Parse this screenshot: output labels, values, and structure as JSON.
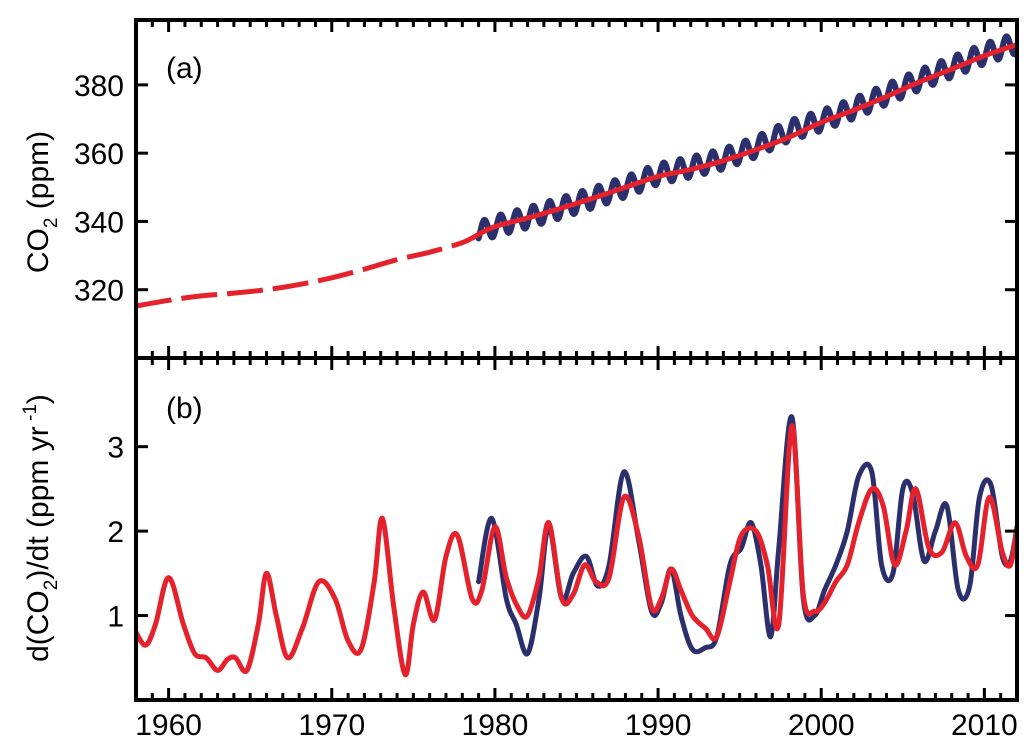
{
  "chart_data": [
    {
      "type": "line",
      "panel_label": "(a)",
      "ylabel": {
        "pre": "CO",
        "sub": "2",
        "post": " (ppm)"
      },
      "xlim": [
        1958,
        2012
      ],
      "ylim": [
        300,
        399
      ],
      "yticks": [
        320,
        340,
        360,
        380
      ],
      "grid": false,
      "series": [
        {
          "style": "seasonal",
          "color": "#2b2f6b",
          "x": [
            1979,
            1980,
            1982,
            1984,
            1986,
            1988,
            1990,
            1992,
            1994,
            1996,
            1998,
            2000,
            2002,
            2004,
            2006,
            2008,
            2010,
            2012
          ],
          "values": [
            336.8,
            338.6,
            341.1,
            343.9,
            346.9,
            350.1,
            353.9,
            355.9,
            358.3,
            361.8,
            366.5,
            369.5,
            373.1,
            377.2,
            381.4,
            385.2,
            389.1,
            392.2
          ],
          "amplitude": 3.0
        },
        {
          "style": "trend",
          "color": "#e5222b",
          "x": [
            1958,
            1960,
            1962,
            1964,
            1966,
            1968,
            1970,
            1972,
            1974,
            1976,
            1978,
            1979,
            1980,
            1982,
            1984,
            1986,
            1988,
            1990,
            1992,
            1994,
            1996,
            1998,
            2000,
            2002,
            2004,
            2006,
            2008,
            2010,
            2012
          ],
          "values": [
            315.2,
            316.9,
            318.2,
            319.0,
            320.0,
            321.5,
            323.5,
            326.0,
            328.8,
            331.0,
            333.8,
            336.2,
            338.5,
            341.0,
            343.8,
            346.8,
            350.0,
            353.2,
            355.2,
            357.8,
            361.0,
            364.6,
            369.0,
            372.6,
            376.6,
            380.8,
            384.6,
            388.5,
            391.8
          ],
          "dashed_before": 1979
        }
      ]
    },
    {
      "type": "line",
      "panel_label": "(b)",
      "ylabel": {
        "pre": "d(CO",
        "sub": "2",
        "mid": ")/dt (ppm yr",
        "sup": " -1",
        "post": ")"
      },
      "xlim": [
        1958,
        2012
      ],
      "ylim": [
        0,
        4.05
      ],
      "yticks": [
        1,
        2,
        3
      ],
      "xticks": [
        1960,
        1970,
        1980,
        1990,
        2000,
        2010
      ],
      "grid": false,
      "series": [
        {
          "color": "#2b2f6b",
          "x": [
            1979,
            1979.8,
            1980.7,
            1981.3,
            1982.0,
            1982.7,
            1983.3,
            1984.1,
            1984.8,
            1985.6,
            1986.3,
            1987.0,
            1987.9,
            1988.8,
            1989.6,
            1990.2,
            1990.8,
            1991.4,
            1992.1,
            1992.9,
            1993.6,
            1994.4,
            1995.1,
            1995.7,
            1996.3,
            1996.9,
            1997.4,
            1998.2,
            1998.9,
            1999.6,
            2000.2,
            2000.9,
            2001.6,
            2002.3,
            2003.1,
            2003.7,
            2004.4,
            2005.0,
            2005.6,
            2006.3,
            2007.0,
            2007.7,
            2008.4,
            2009.1,
            2009.7,
            2010.4,
            2011.1,
            2011.6,
            2012
          ],
          "values": [
            1.4,
            2.15,
            1.2,
            0.9,
            0.55,
            1.2,
            2.05,
            1.2,
            1.5,
            1.7,
            1.35,
            1.6,
            2.7,
            1.9,
            1.05,
            1.15,
            1.55,
            1.0,
            0.6,
            0.62,
            0.75,
            1.6,
            1.8,
            2.1,
            1.6,
            0.75,
            1.8,
            3.35,
            1.2,
            1.0,
            1.3,
            1.6,
            2.0,
            2.65,
            2.7,
            1.6,
            1.5,
            2.5,
            2.45,
            1.65,
            2.0,
            2.3,
            1.3,
            1.35,
            2.4,
            2.55,
            1.7,
            1.65,
            2.05
          ]
        },
        {
          "color": "#e5222b",
          "x": [
            1958,
            1958.6,
            1959.2,
            1960.0,
            1960.9,
            1961.6,
            1962.3,
            1963.0,
            1963.6,
            1964.1,
            1964.8,
            1965.5,
            1966.0,
            1966.6,
            1967.3,
            1968.2,
            1969.2,
            1970.2,
            1971.0,
            1971.8,
            1972.6,
            1973.1,
            1973.8,
            1974.5,
            1975.0,
            1975.6,
            1976.3,
            1977.0,
            1977.7,
            1978.6,
            1979.2,
            1980.0,
            1980.7,
            1981.4,
            1982.0,
            1982.7,
            1983.3,
            1984.1,
            1984.8,
            1985.5,
            1986.2,
            1987.0,
            1987.9,
            1988.8,
            1989.6,
            1990.2,
            1990.8,
            1991.4,
            1992.1,
            1992.9,
            1993.6,
            1994.4,
            1995.1,
            1996.0,
            1996.7,
            1997.4,
            1998.2,
            1998.9,
            1999.6,
            2000.2,
            2000.9,
            2001.6,
            2002.3,
            2003.1,
            2003.8,
            2004.5,
            2005.2,
            2005.8,
            2006.6,
            2007.4,
            2008.2,
            2008.9,
            2009.6,
            2010.3,
            2011.1,
            2011.6,
            2012
          ],
          "values": [
            0.8,
            0.65,
            0.9,
            1.45,
            0.9,
            0.55,
            0.5,
            0.35,
            0.48,
            0.5,
            0.35,
            0.9,
            1.5,
            1.0,
            0.5,
            0.85,
            1.4,
            1.2,
            0.7,
            0.6,
            1.4,
            2.15,
            1.1,
            0.3,
            0.9,
            1.28,
            0.95,
            1.7,
            1.95,
            1.2,
            1.3,
            2.05,
            1.45,
            1.1,
            1.0,
            1.45,
            2.1,
            1.2,
            1.25,
            1.6,
            1.4,
            1.45,
            2.4,
            1.95,
            1.1,
            1.2,
            1.55,
            1.3,
            1.0,
            0.85,
            0.75,
            1.4,
            1.95,
            2.0,
            1.6,
            0.9,
            3.25,
            1.25,
            1.05,
            1.15,
            1.4,
            1.6,
            2.1,
            2.5,
            2.3,
            1.6,
            2.0,
            2.5,
            1.8,
            1.75,
            2.1,
            1.7,
            1.6,
            2.4,
            1.75,
            1.6,
            2.05
          ]
        }
      ]
    }
  ]
}
